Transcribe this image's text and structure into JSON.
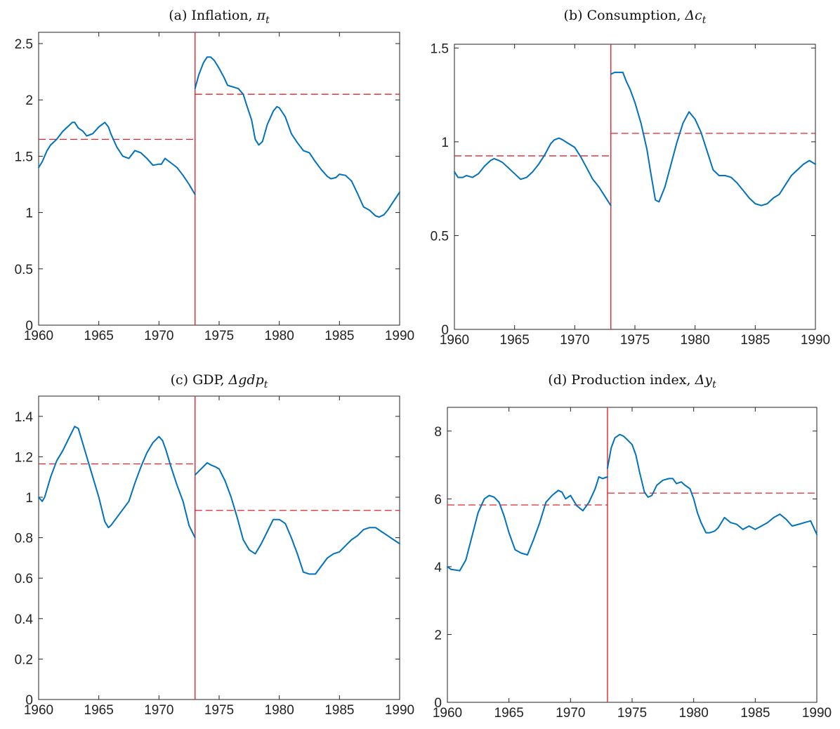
{
  "colors": {
    "series": "#0072BD",
    "break": "#E3242B",
    "mean": "#E3242B"
  },
  "chart_data": [
    {
      "type": "line",
      "title_text": "(a) Inflation, ",
      "title_math": "π",
      "title_sub": "t",
      "xlim": [
        1960,
        1990
      ],
      "ylim": [
        0,
        2.6
      ],
      "xticks": [
        1960,
        1965,
        1970,
        1975,
        1980,
        1985,
        1990
      ],
      "xtick_labels": [
        "1960",
        "1965",
        "1970",
        "1975",
        "1980",
        "1985",
        "1990"
      ],
      "yticks": [
        0,
        0.5,
        1,
        1.5,
        2,
        2.5
      ],
      "ytick_labels": [
        "0",
        "0.5",
        "1",
        "1.5",
        "2",
        "2.5"
      ],
      "break_x": 1973,
      "means": [
        {
          "x0": 1960,
          "x1": 1973,
          "y": 1.65
        },
        {
          "x0": 1973,
          "x1": 1990,
          "y": 2.05
        }
      ],
      "series": [
        {
          "x": [
            1960,
            1960.3,
            1960.7,
            1961,
            1961.5,
            1962,
            1962.5,
            1962.8,
            1963,
            1963.3,
            1963.7,
            1964,
            1964.5,
            1965,
            1965.5,
            1965.8,
            1966,
            1966.5,
            1967,
            1967.5,
            1968,
            1968.5,
            1969,
            1969.5,
            1970,
            1970.2,
            1970.5,
            1971,
            1971.5,
            1972,
            1972.5,
            1973
          ],
          "y": [
            1.4,
            1.45,
            1.55,
            1.6,
            1.65,
            1.72,
            1.77,
            1.8,
            1.8,
            1.75,
            1.72,
            1.68,
            1.7,
            1.76,
            1.8,
            1.76,
            1.7,
            1.58,
            1.5,
            1.48,
            1.55,
            1.53,
            1.48,
            1.42,
            1.43,
            1.43,
            1.48,
            1.44,
            1.4,
            1.33,
            1.25,
            1.16
          ]
        },
        {
          "x": [
            1973,
            1973.3,
            1973.7,
            1974,
            1974.3,
            1974.6,
            1975,
            1975.4,
            1975.7,
            1976,
            1976.3,
            1976.6,
            1977,
            1977.3,
            1977.7,
            1978,
            1978.3,
            1978.6,
            1979,
            1979.5,
            1979.8,
            1980,
            1980.5,
            1981,
            1981.5,
            1982,
            1982.5,
            1983,
            1983.5,
            1984,
            1984.3,
            1984.7,
            1985,
            1985.5,
            1986,
            1986.5,
            1987,
            1987.5,
            1988,
            1988.3,
            1988.7,
            1989,
            1989.5,
            1990
          ],
          "y": [
            2.1,
            2.22,
            2.33,
            2.38,
            2.38,
            2.35,
            2.28,
            2.2,
            2.13,
            2.12,
            2.11,
            2.1,
            2.05,
            1.95,
            1.82,
            1.65,
            1.6,
            1.63,
            1.78,
            1.9,
            1.94,
            1.93,
            1.85,
            1.7,
            1.62,
            1.55,
            1.53,
            1.45,
            1.38,
            1.32,
            1.3,
            1.31,
            1.34,
            1.33,
            1.28,
            1.17,
            1.05,
            1.02,
            0.97,
            0.96,
            0.98,
            1.02,
            1.1,
            1.18
          ]
        }
      ]
    },
    {
      "type": "line",
      "title_text": "(b) Consumption, ",
      "title_math": "Δc",
      "title_sub": "t",
      "xlim": [
        1960,
        1990
      ],
      "ylim": [
        0,
        1.52
      ],
      "xticks": [
        1960,
        1965,
        1970,
        1975,
        1980,
        1985,
        1990
      ],
      "xtick_labels": [
        "1960",
        "1965",
        "1970",
        "1975",
        "1980",
        "1985",
        "1990"
      ],
      "yticks": [
        0,
        0.5,
        1,
        1.5
      ],
      "ytick_labels": [
        "0",
        "0.5",
        "1",
        "1.5"
      ],
      "break_x": 1973,
      "means": [
        {
          "x0": 1960,
          "x1": 1973,
          "y": 0.925
        },
        {
          "x0": 1973,
          "x1": 1990,
          "y": 1.045
        }
      ],
      "series": [
        {
          "x": [
            1960,
            1960.3,
            1960.7,
            1961,
            1961.5,
            1962,
            1962.5,
            1963,
            1963.3,
            1963.7,
            1964,
            1964.5,
            1965,
            1965.5,
            1966,
            1966.5,
            1967,
            1967.5,
            1968,
            1968.3,
            1968.7,
            1969,
            1969.5,
            1970,
            1970.5,
            1971,
            1971.5,
            1972,
            1972.5,
            1973
          ],
          "y": [
            0.84,
            0.81,
            0.81,
            0.82,
            0.81,
            0.83,
            0.87,
            0.9,
            0.91,
            0.9,
            0.89,
            0.86,
            0.83,
            0.8,
            0.81,
            0.84,
            0.88,
            0.93,
            0.99,
            1.01,
            1.02,
            1.01,
            0.99,
            0.97,
            0.92,
            0.86,
            0.8,
            0.76,
            0.71,
            0.66
          ]
        },
        {
          "x": [
            1973,
            1973.3,
            1973.6,
            1974,
            1974.3,
            1974.6,
            1975,
            1975.5,
            1976,
            1976.3,
            1976.7,
            1977,
            1977.5,
            1978,
            1978.5,
            1979,
            1979.5,
            1980,
            1980.5,
            1981,
            1981.5,
            1982,
            1982.5,
            1983,
            1983.5,
            1984,
            1984.5,
            1985,
            1985.5,
            1986,
            1986.5,
            1987,
            1987.5,
            1988,
            1988.5,
            1989,
            1989.5,
            1990
          ],
          "y": [
            1.36,
            1.37,
            1.37,
            1.37,
            1.32,
            1.28,
            1.21,
            1.1,
            0.96,
            0.84,
            0.69,
            0.68,
            0.76,
            0.88,
            1.0,
            1.1,
            1.16,
            1.12,
            1.05,
            0.95,
            0.85,
            0.82,
            0.82,
            0.81,
            0.78,
            0.74,
            0.7,
            0.67,
            0.66,
            0.67,
            0.7,
            0.72,
            0.77,
            0.82,
            0.85,
            0.88,
            0.9,
            0.88
          ]
        }
      ]
    },
    {
      "type": "line",
      "title_text": "(c) GDP, ",
      "title_math": "Δgdp",
      "title_sub": "t",
      "xlim": [
        1960,
        1990
      ],
      "ylim": [
        0,
        1.5
      ],
      "xticks": [
        1960,
        1965,
        1970,
        1975,
        1980,
        1985,
        1990
      ],
      "xtick_labels": [
        "1960",
        "1965",
        "1970",
        "1975",
        "1980",
        "1985",
        "1990"
      ],
      "yticks": [
        0,
        0.2,
        0.4,
        0.6,
        0.8,
        1,
        1.2,
        1.4
      ],
      "ytick_labels": [
        "0",
        "0.2",
        "0.4",
        "0.6",
        "0.8",
        "1",
        "1.2",
        "1.4"
      ],
      "break_x": 1973,
      "means": [
        {
          "x0": 1960,
          "x1": 1973,
          "y": 1.165
        },
        {
          "x0": 1973,
          "x1": 1990,
          "y": 0.935
        }
      ],
      "series": [
        {
          "x": [
            1960,
            1960.3,
            1960.5,
            1961,
            1961.5,
            1962,
            1962.5,
            1963,
            1963.3,
            1963.6,
            1964,
            1964.5,
            1965,
            1965.5,
            1965.8,
            1966,
            1966.5,
            1967,
            1967.5,
            1968,
            1968.5,
            1969,
            1969.5,
            1970,
            1970.3,
            1970.6,
            1971,
            1971.5,
            1972,
            1972.5,
            1973
          ],
          "y": [
            1.0,
            0.98,
            1.0,
            1.1,
            1.18,
            1.23,
            1.29,
            1.35,
            1.34,
            1.28,
            1.2,
            1.1,
            1.0,
            0.88,
            0.85,
            0.86,
            0.9,
            0.94,
            0.98,
            1.07,
            1.15,
            1.22,
            1.27,
            1.3,
            1.28,
            1.23,
            1.15,
            1.06,
            0.98,
            0.86,
            0.8
          ]
        },
        {
          "x": [
            1973,
            1973.5,
            1974,
            1974.3,
            1974.7,
            1975,
            1975.5,
            1976,
            1976.5,
            1977,
            1977.5,
            1978,
            1978.5,
            1979,
            1979.5,
            1980,
            1980.5,
            1981,
            1981.5,
            1982,
            1982.5,
            1983,
            1983.5,
            1984,
            1984.5,
            1985,
            1985.5,
            1986,
            1986.5,
            1987,
            1987.5,
            1988,
            1988.5,
            1989,
            1989.5,
            1990
          ],
          "y": [
            1.11,
            1.14,
            1.17,
            1.16,
            1.15,
            1.14,
            1.08,
            1.0,
            0.9,
            0.79,
            0.74,
            0.72,
            0.77,
            0.83,
            0.89,
            0.89,
            0.87,
            0.8,
            0.72,
            0.63,
            0.62,
            0.62,
            0.66,
            0.7,
            0.72,
            0.73,
            0.76,
            0.79,
            0.81,
            0.84,
            0.85,
            0.85,
            0.83,
            0.81,
            0.79,
            0.77
          ]
        }
      ]
    },
    {
      "type": "line",
      "title_text": "(d) Production index, ",
      "title_math": "Δy",
      "title_sub": "t",
      "xlim": [
        1960,
        1990
      ],
      "ylim": [
        0,
        8.7
      ],
      "xticks": [
        1960,
        1965,
        1970,
        1975,
        1980,
        1985,
        1990
      ],
      "xtick_labels": [
        "1960",
        "1965",
        "1970",
        "1975",
        "1980",
        "1985",
        "1990"
      ],
      "yticks": [
        0,
        2,
        4,
        6,
        8
      ],
      "ytick_labels": [
        "0",
        "2",
        "4",
        "6",
        "8"
      ],
      "break_x": 1973,
      "means": [
        {
          "x0": 1960,
          "x1": 1973,
          "y": 5.82
        },
        {
          "x0": 1973,
          "x1": 1990,
          "y": 6.17
        }
      ],
      "series": [
        {
          "x": [
            1960,
            1960.3,
            1960.7,
            1961,
            1961.5,
            1962,
            1962.5,
            1963,
            1963.4,
            1963.8,
            1964.2,
            1964.6,
            1965,
            1965.5,
            1966,
            1966.5,
            1967,
            1967.5,
            1968,
            1968.5,
            1969,
            1969.3,
            1969.6,
            1970,
            1970.5,
            1971,
            1971.5,
            1972,
            1972.3,
            1972.6,
            1973
          ],
          "y": [
            4.0,
            3.92,
            3.9,
            3.88,
            4.2,
            4.9,
            5.6,
            6.0,
            6.1,
            6.05,
            5.9,
            5.5,
            5.0,
            4.5,
            4.4,
            4.35,
            4.8,
            5.3,
            5.9,
            6.1,
            6.25,
            6.2,
            6.0,
            6.1,
            5.8,
            5.65,
            5.9,
            6.3,
            6.65,
            6.6,
            6.65
          ]
        },
        {
          "x": [
            1973,
            1973.3,
            1973.6,
            1974,
            1974.3,
            1974.6,
            1975,
            1975.3,
            1975.6,
            1976,
            1976.3,
            1976.6,
            1977,
            1977.5,
            1978,
            1978.3,
            1978.6,
            1979,
            1979.3,
            1979.7,
            1980,
            1980.3,
            1980.6,
            1981,
            1981.3,
            1981.7,
            1982,
            1982.5,
            1983,
            1983.5,
            1984,
            1984.5,
            1985,
            1985.5,
            1986,
            1986.5,
            1987,
            1987.5,
            1988,
            1988.5,
            1989,
            1989.5,
            1990
          ],
          "y": [
            6.9,
            7.5,
            7.8,
            7.9,
            7.85,
            7.75,
            7.6,
            7.3,
            6.8,
            6.2,
            6.05,
            6.1,
            6.4,
            6.55,
            6.6,
            6.6,
            6.45,
            6.5,
            6.4,
            6.3,
            6.0,
            5.6,
            5.3,
            5.0,
            5.0,
            5.05,
            5.15,
            5.45,
            5.3,
            5.25,
            5.1,
            5.2,
            5.1,
            5.2,
            5.3,
            5.45,
            5.55,
            5.4,
            5.2,
            5.25,
            5.3,
            5.35,
            4.95
          ]
        }
      ]
    }
  ]
}
